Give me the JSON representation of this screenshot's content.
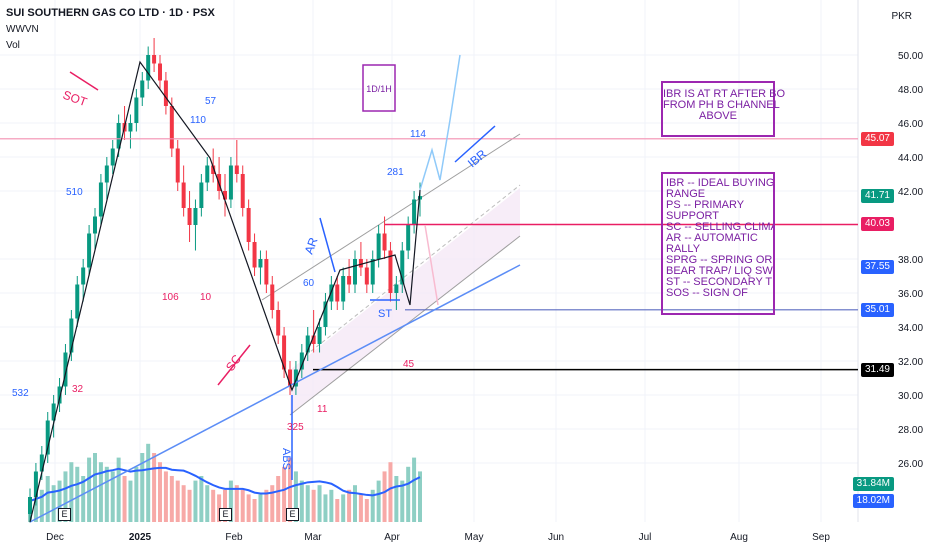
{
  "header": {
    "title": "SUI SOUTHERN GAS CO LTD · 1D · PSX",
    "indicator1": "WWVN",
    "indicator2": "Vol",
    "currency": "PKR"
  },
  "colors": {
    "up": "#089981",
    "down": "#f23645",
    "volUp": "#8ecfc4",
    "volDown": "#f7a9a7",
    "volMA": "#2962ff",
    "channelFill": "#f3e5f5",
    "channelLine": "#9e9e9e",
    "noteBorder": "#9c27b0"
  },
  "chart_data": {
    "type": "candlestick",
    "y_axis": {
      "ticks": [
        "50.00",
        "48.00",
        "46.00",
        "44.00",
        "42.00",
        "38.00",
        "36.00",
        "34.00",
        "32.00",
        "30.00",
        "28.00",
        "26.00"
      ],
      "ylim": [
        24,
        52
      ]
    },
    "x_axis": {
      "ticks": [
        "Dec",
        "2025",
        "Feb",
        "Mar",
        "Apr",
        "May",
        "Jun",
        "Jul",
        "Aug",
        "Sep"
      ]
    },
    "candles": [
      [
        23,
        24.5,
        22.5,
        24
      ],
      [
        24,
        26,
        23.5,
        25.5
      ],
      [
        25.5,
        27,
        25,
        26.5
      ],
      [
        26.5,
        29,
        26,
        28.5
      ],
      [
        28.5,
        30,
        27.5,
        29.5
      ],
      [
        29.5,
        31,
        29,
        30.5
      ],
      [
        30.5,
        33,
        30,
        32.5
      ],
      [
        32.5,
        35,
        32,
        34.5
      ],
      [
        34.5,
        37,
        34,
        36.5
      ],
      [
        36.5,
        38,
        35.5,
        37.5
      ],
      [
        37.5,
        40,
        37,
        39.5
      ],
      [
        39.5,
        41,
        38.5,
        40.5
      ],
      [
        40.5,
        43,
        40,
        42.5
      ],
      [
        42.5,
        44,
        41.5,
        43.5
      ],
      [
        43.5,
        45,
        43,
        44.5
      ],
      [
        44.5,
        46.5,
        44,
        46
      ],
      [
        46,
        47,
        45,
        45.5
      ],
      [
        45.5,
        46.5,
        44.5,
        46
      ],
      [
        46,
        48,
        45.5,
        47.5
      ],
      [
        47.5,
        49,
        47,
        48.5
      ],
      [
        48.5,
        50.5,
        48,
        50
      ],
      [
        50,
        51,
        49,
        49.5
      ],
      [
        49.5,
        50,
        48,
        48.5
      ],
      [
        48.5,
        49,
        46.5,
        47
      ],
      [
        47,
        47.5,
        44,
        44.5
      ],
      [
        44.5,
        45,
        42,
        42.5
      ],
      [
        42.5,
        43.5,
        40.5,
        41
      ],
      [
        41,
        42,
        39,
        40
      ],
      [
        40,
        41.5,
        38.5,
        41
      ],
      [
        41,
        43,
        40.5,
        42.5
      ],
      [
        42.5,
        44,
        42,
        43.5
      ],
      [
        43.5,
        44.5,
        42.5,
        43
      ],
      [
        43,
        44,
        41.5,
        42
      ],
      [
        42,
        43,
        40.5,
        41.5
      ],
      [
        41.5,
        44,
        41,
        43.5
      ],
      [
        43.5,
        45,
        42.5,
        43
      ],
      [
        43,
        43.5,
        40.5,
        41
      ],
      [
        41,
        41.5,
        38.5,
        39
      ],
      [
        39,
        39.5,
        37,
        37.5
      ],
      [
        37.5,
        38.5,
        36.5,
        38
      ],
      [
        38,
        38.5,
        36,
        36.5
      ],
      [
        36.5,
        37,
        34.5,
        35
      ],
      [
        35,
        35.5,
        33,
        33.5
      ],
      [
        33.5,
        34,
        31,
        31.5
      ],
      [
        31.5,
        32,
        30,
        30.5
      ],
      [
        30.5,
        32,
        30,
        31.5
      ],
      [
        31.5,
        33,
        31,
        32.5
      ],
      [
        32.5,
        34,
        32,
        33.5
      ],
      [
        33.5,
        35,
        32.5,
        33
      ],
      [
        33,
        34.5,
        32.5,
        34
      ],
      [
        34,
        36,
        33.5,
        35.5
      ],
      [
        35.5,
        37,
        35,
        36.5
      ],
      [
        36.5,
        37,
        35,
        35.5
      ],
      [
        35.5,
        37.5,
        35,
        37
      ],
      [
        37,
        38,
        36,
        36.5
      ],
      [
        36.5,
        38.5,
        36,
        38
      ],
      [
        38,
        39,
        37,
        37.5
      ],
      [
        37.5,
        38,
        36,
        36.5
      ],
      [
        36.5,
        38.5,
        36,
        38
      ],
      [
        38,
        40,
        37.5,
        39.5
      ],
      [
        39.5,
        40.5,
        38,
        38.5
      ],
      [
        38.5,
        39,
        35.5,
        36
      ],
      [
        36,
        37,
        35,
        36.5
      ],
      [
        36.5,
        39,
        36,
        38.5
      ],
      [
        38.5,
        40.5,
        38,
        40
      ],
      [
        40,
        42,
        39.5,
        41.5
      ],
      [
        41.5,
        42.5,
        40.5,
        41.7
      ]
    ],
    "volume": [
      10,
      12,
      14,
      20,
      16,
      18,
      22,
      26,
      24,
      20,
      28,
      30,
      26,
      24,
      22,
      28,
      20,
      18,
      24,
      30,
      34,
      30,
      26,
      22,
      20,
      18,
      16,
      14,
      18,
      20,
      16,
      14,
      12,
      14,
      18,
      16,
      14,
      12,
      10,
      12,
      14,
      16,
      20,
      24,
      28,
      22,
      18,
      16,
      14,
      16,
      12,
      14,
      10,
      12,
      14,
      16,
      12,
      10,
      14,
      18,
      22,
      26,
      20,
      18,
      24,
      28,
      22
    ],
    "volume_labels": {
      "v1": "31.84M",
      "v2": "18.02M"
    },
    "price_tags": [
      {
        "value": 45.07,
        "label": "45.07",
        "color": "#f23645"
      },
      {
        "value": 41.71,
        "label": "41.71",
        "color": "#089981"
      },
      {
        "value": 40.03,
        "label": "40.03",
        "color": "#e91e63"
      },
      {
        "value": 37.55,
        "label": "37.55",
        "color": "#2962ff"
      },
      {
        "value": 35.01,
        "label": "35.01",
        "color": "#2962ff"
      },
      {
        "value": 31.49,
        "label": "31.49",
        "color": "#000000"
      }
    ],
    "annotations": {
      "sot": "SOT",
      "sc": "SC",
      "ar": "AR",
      "st": "ST",
      "abs": "ABS",
      "ibr": "IBR",
      "tf": "1D/1H",
      "n532": "532",
      "n32": "32",
      "n510": "510",
      "n106": "106",
      "n10": "10",
      "n110": "110",
      "n57": "57",
      "n60": "60",
      "n325": "325",
      "n11": "11",
      "n281": "281",
      "n114": "114",
      "n45": "45",
      "e": "E"
    }
  },
  "note1": {
    "lines": [
      "IBR IS AT RT AFTER BO",
      "FROM PH B CHANNEL",
      "ABOVE"
    ]
  },
  "note2": {
    "lines": [
      "IBR -- IDEAL BUYING",
      "RANGE",
      "PS -- PRIMARY",
      "SUPPORT",
      "SC -- SELLING CLIMAX",
      "AR -- AUTOMATIC",
      "RALLY",
      "SPRG -- SPRING OR",
      "BEAR TRAP/ LIQ SWP",
      "ST -- SECONDARY TEST",
      "SOS -- SIGN OF"
    ]
  }
}
